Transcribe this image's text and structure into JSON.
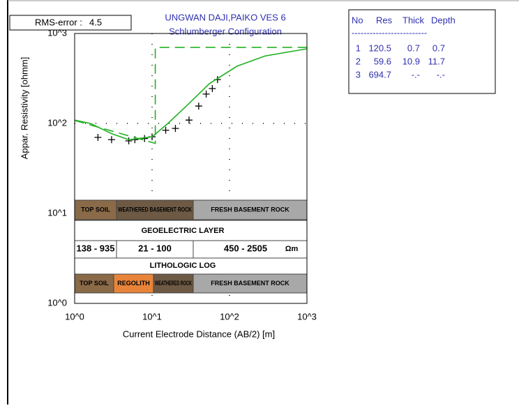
{
  "rms": {
    "label": "RMS-error :",
    "value": 4.5
  },
  "table": {
    "header": [
      "No",
      "Res",
      "Thick",
      "Depth"
    ],
    "rule": "-------------------------",
    "rows": [
      [
        1,
        120.5,
        0.7,
        0.7
      ],
      [
        2,
        59.6,
        10.9,
        11.7
      ],
      [
        3,
        694.7,
        "-.-",
        "-.-"
      ]
    ]
  },
  "geoelectric_strip": [
    "TOP SOIL",
    "WEATHERED BASEMENT ROCK",
    "FRESH BASEMENT ROCK"
  ],
  "geoelectric_label": "GEOELECTRIC LAYER",
  "resistivity_ranges": [
    "138 - 935",
    "21 - 100",
    "450 - 2505"
  ],
  "resistivity_unit": "Ωm",
  "lithologic_label": "LITHOLOGIC LOG",
  "lithologic_strip": [
    "TOP SOIL",
    "REGOLITH",
    "WEATHERED ROCK",
    "FRESH BASEMENT ROCK"
  ],
  "chart_data": {
    "type": "line",
    "title": "UNGWAN DAJI,PAIKO VES 6",
    "subtitle": "Schlumberger Configuration",
    "x_label": "Current Electrode Distance (AB/2) [m]",
    "y_label": "Appar. Resistivity [ohmm]",
    "xscale": "log",
    "yscale": "log",
    "grid": "dotted",
    "xlim": [
      1,
      1000
    ],
    "ylim": [
      1,
      1000
    ],
    "xticks": [
      {
        "value": 1,
        "label": "10^0"
      },
      {
        "value": 10,
        "label": "10^1"
      },
      {
        "value": 100,
        "label": "10^2"
      },
      {
        "value": 1000,
        "label": "10^3"
      }
    ],
    "yticks": [
      {
        "value": 1,
        "label": "10^0"
      },
      {
        "value": 10,
        "label": "10^1"
      },
      {
        "value": 100,
        "label": "10^2"
      },
      {
        "value": 1000,
        "label": "10^3"
      }
    ],
    "series": [
      {
        "style": "markers",
        "color": "#000000",
        "x": [
          2,
          3,
          5,
          6,
          8,
          10,
          15,
          20,
          30,
          40,
          50,
          60,
          70
        ],
        "values": [
          70,
          66,
          64,
          66,
          68,
          71,
          84,
          88,
          109,
          156,
          212,
          244,
          307
        ]
      },
      {
        "style": "solid",
        "color": "#22b022",
        "x": [
          1,
          1.6,
          3,
          5,
          10,
          16,
          29,
          55,
          125,
          290,
          1000
        ],
        "values": [
          109,
          100,
          77,
          66,
          71,
          100,
          162,
          277,
          433,
          563,
          675
        ]
      },
      {
        "style": "dashed",
        "color": "#22b022",
        "x": [
          1,
          11,
          11,
          1000
        ],
        "values": [
          108,
          60,
          700,
          700
        ]
      }
    ]
  }
}
